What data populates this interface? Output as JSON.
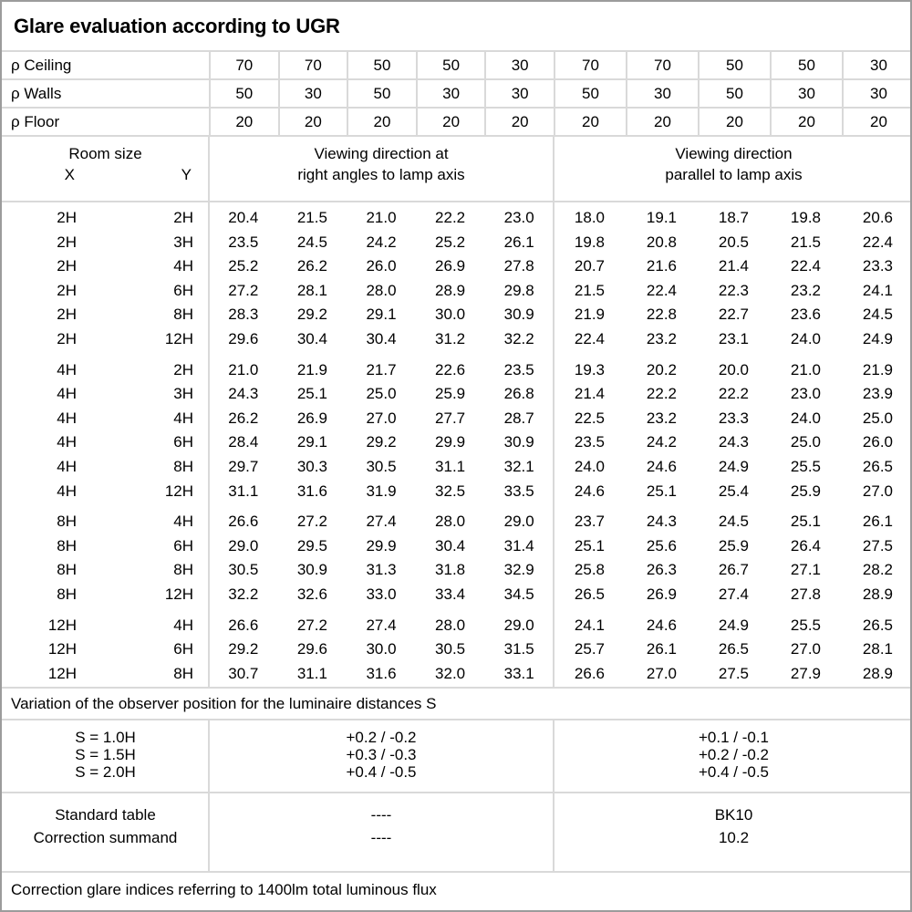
{
  "title": "Glare evaluation according to UGR",
  "colors": {
    "background": "#ffffff",
    "text": "#000000",
    "grid_line": "#d9d9d9",
    "outer_border": "#9c9c9c"
  },
  "reflectance_rows": [
    {
      "label": "ρ Ceiling",
      "values": [
        "70",
        "70",
        "50",
        "50",
        "30",
        "70",
        "70",
        "50",
        "50",
        "30"
      ]
    },
    {
      "label": "ρ Walls",
      "values": [
        "50",
        "30",
        "50",
        "30",
        "30",
        "50",
        "30",
        "50",
        "30",
        "30"
      ]
    },
    {
      "label": "ρ Floor",
      "values": [
        "20",
        "20",
        "20",
        "20",
        "20",
        "20",
        "20",
        "20",
        "20",
        "20"
      ]
    }
  ],
  "room_header": {
    "title": "Room size",
    "x_label": "X",
    "y_label": "Y"
  },
  "group_headers": {
    "right_angles": {
      "line1": "Viewing direction at",
      "line2": "right angles to lamp axis"
    },
    "parallel": {
      "line1": "Viewing direction",
      "line2": "parallel to lamp axis"
    }
  },
  "ugr_groups": [
    {
      "rows": [
        {
          "x": "2H",
          "y": "2H",
          "ra": [
            "20.4",
            "21.5",
            "21.0",
            "22.2",
            "23.0"
          ],
          "pa": [
            "18.0",
            "19.1",
            "18.7",
            "19.8",
            "20.6"
          ]
        },
        {
          "x": "2H",
          "y": "3H",
          "ra": [
            "23.5",
            "24.5",
            "24.2",
            "25.2",
            "26.1"
          ],
          "pa": [
            "19.8",
            "20.8",
            "20.5",
            "21.5",
            "22.4"
          ]
        },
        {
          "x": "2H",
          "y": "4H",
          "ra": [
            "25.2",
            "26.2",
            "26.0",
            "26.9",
            "27.8"
          ],
          "pa": [
            "20.7",
            "21.6",
            "21.4",
            "22.4",
            "23.3"
          ]
        },
        {
          "x": "2H",
          "y": "6H",
          "ra": [
            "27.2",
            "28.1",
            "28.0",
            "28.9",
            "29.8"
          ],
          "pa": [
            "21.5",
            "22.4",
            "22.3",
            "23.2",
            "24.1"
          ]
        },
        {
          "x": "2H",
          "y": "8H",
          "ra": [
            "28.3",
            "29.2",
            "29.1",
            "30.0",
            "30.9"
          ],
          "pa": [
            "21.9",
            "22.8",
            "22.7",
            "23.6",
            "24.5"
          ]
        },
        {
          "x": "2H",
          "y": "12H",
          "ra": [
            "29.6",
            "30.4",
            "30.4",
            "31.2",
            "32.2"
          ],
          "pa": [
            "22.4",
            "23.2",
            "23.1",
            "24.0",
            "24.9"
          ]
        }
      ]
    },
    {
      "rows": [
        {
          "x": "4H",
          "y": "2H",
          "ra": [
            "21.0",
            "21.9",
            "21.7",
            "22.6",
            "23.5"
          ],
          "pa": [
            "19.3",
            "20.2",
            "20.0",
            "21.0",
            "21.9"
          ]
        },
        {
          "x": "4H",
          "y": "3H",
          "ra": [
            "24.3",
            "25.1",
            "25.0",
            "25.9",
            "26.8"
          ],
          "pa": [
            "21.4",
            "22.2",
            "22.2",
            "23.0",
            "23.9"
          ]
        },
        {
          "x": "4H",
          "y": "4H",
          "ra": [
            "26.2",
            "26.9",
            "27.0",
            "27.7",
            "28.7"
          ],
          "pa": [
            "22.5",
            "23.2",
            "23.3",
            "24.0",
            "25.0"
          ]
        },
        {
          "x": "4H",
          "y": "6H",
          "ra": [
            "28.4",
            "29.1",
            "29.2",
            "29.9",
            "30.9"
          ],
          "pa": [
            "23.5",
            "24.2",
            "24.3",
            "25.0",
            "26.0"
          ]
        },
        {
          "x": "4H",
          "y": "8H",
          "ra": [
            "29.7",
            "30.3",
            "30.5",
            "31.1",
            "32.1"
          ],
          "pa": [
            "24.0",
            "24.6",
            "24.9",
            "25.5",
            "26.5"
          ]
        },
        {
          "x": "4H",
          "y": "12H",
          "ra": [
            "31.1",
            "31.6",
            "31.9",
            "32.5",
            "33.5"
          ],
          "pa": [
            "24.6",
            "25.1",
            "25.4",
            "25.9",
            "27.0"
          ]
        }
      ]
    },
    {
      "rows": [
        {
          "x": "8H",
          "y": "4H",
          "ra": [
            "26.6",
            "27.2",
            "27.4",
            "28.0",
            "29.0"
          ],
          "pa": [
            "23.7",
            "24.3",
            "24.5",
            "25.1",
            "26.1"
          ]
        },
        {
          "x": "8H",
          "y": "6H",
          "ra": [
            "29.0",
            "29.5",
            "29.9",
            "30.4",
            "31.4"
          ],
          "pa": [
            "25.1",
            "25.6",
            "25.9",
            "26.4",
            "27.5"
          ]
        },
        {
          "x": "8H",
          "y": "8H",
          "ra": [
            "30.5",
            "30.9",
            "31.3",
            "31.8",
            "32.9"
          ],
          "pa": [
            "25.8",
            "26.3",
            "26.7",
            "27.1",
            "28.2"
          ]
        },
        {
          "x": "8H",
          "y": "12H",
          "ra": [
            "32.2",
            "32.6",
            "33.0",
            "33.4",
            "34.5"
          ],
          "pa": [
            "26.5",
            "26.9",
            "27.4",
            "27.8",
            "28.9"
          ]
        }
      ]
    },
    {
      "rows": [
        {
          "x": "12H",
          "y": "4H",
          "ra": [
            "26.6",
            "27.2",
            "27.4",
            "28.0",
            "29.0"
          ],
          "pa": [
            "24.1",
            "24.6",
            "24.9",
            "25.5",
            "26.5"
          ]
        },
        {
          "x": "12H",
          "y": "6H",
          "ra": [
            "29.2",
            "29.6",
            "30.0",
            "30.5",
            "31.5"
          ],
          "pa": [
            "25.7",
            "26.1",
            "26.5",
            "27.0",
            "28.1"
          ]
        },
        {
          "x": "12H",
          "y": "8H",
          "ra": [
            "30.7",
            "31.1",
            "31.6",
            "32.0",
            "33.1"
          ],
          "pa": [
            "26.6",
            "27.0",
            "27.5",
            "27.9",
            "28.9"
          ]
        }
      ]
    }
  ],
  "variation_note": "Variation of the observer position for the luminaire distances S",
  "variation_rows": [
    {
      "label": "S = 1.0H",
      "right_angles": "+0.2 / -0.2",
      "parallel": "+0.1 / -0.1"
    },
    {
      "label": "S = 1.5H",
      "right_angles": "+0.3 / -0.3",
      "parallel": "+0.2 / -0.2"
    },
    {
      "label": "S = 2.0H",
      "right_angles": "+0.4 / -0.5",
      "parallel": "+0.4 / -0.5"
    }
  ],
  "summary_rows": [
    {
      "label": "Standard table",
      "right_angles": "----",
      "parallel": "BK10"
    },
    {
      "label": "Correction summand",
      "right_angles": "----",
      "parallel": "10.2"
    }
  ],
  "footer_note": "Correction glare indices referring to 1400lm total luminous flux"
}
